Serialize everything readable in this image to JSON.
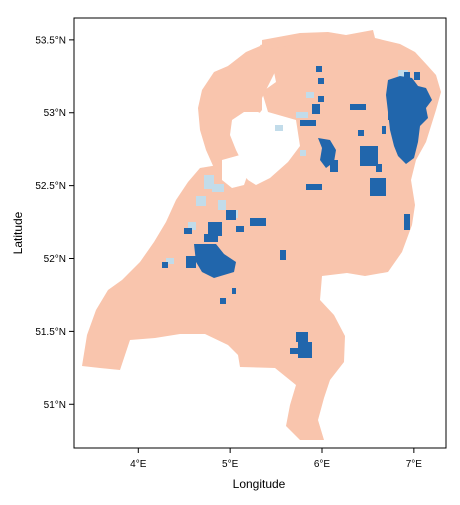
{
  "map": {
    "xlabel": "Longitude",
    "ylabel": "Latitude",
    "x_ticks": [
      {
        "value": 4,
        "label": "4°E"
      },
      {
        "value": 5,
        "label": "5°E"
      },
      {
        "value": 6,
        "label": "6°E"
      },
      {
        "value": 7,
        "label": "7°E"
      }
    ],
    "y_ticks": [
      {
        "value": 51.0,
        "label": "51°N"
      },
      {
        "value": 51.5,
        "label": "51.5°N"
      },
      {
        "value": 52.0,
        "label": "52°N"
      },
      {
        "value": 52.5,
        "label": "52.5°N"
      },
      {
        "value": 53.0,
        "label": "53°N"
      },
      {
        "value": 53.5,
        "label": "53.5°N"
      }
    ],
    "xlim": [
      3.3,
      7.35
    ],
    "ylim": [
      50.7,
      53.65
    ],
    "legend": "none",
    "grid": false,
    "colors": {
      "land": "#f9c5ad",
      "water_dark": "#2166ac",
      "water_light": "#c2dcea"
    }
  }
}
